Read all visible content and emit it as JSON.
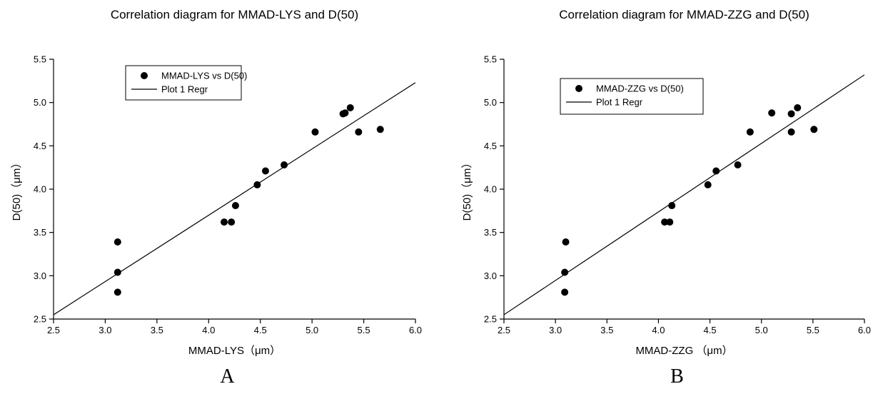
{
  "chart_data": [
    {
      "type": "scatter",
      "title": "Correlation diagram for MMAD-LYS and D(50)",
      "xlabel": "MMAD-LYS（μm）",
      "ylabel": "D(50)（μm）",
      "panel_label": "A",
      "xlim": [
        2.5,
        6.0
      ],
      "ylim": [
        2.5,
        5.5
      ],
      "xticks": [
        "2.5",
        "3.0",
        "3.5",
        "4.0",
        "4.5",
        "5.0",
        "5.5",
        "6.0"
      ],
      "yticks": [
        "2.5",
        "3.0",
        "3.5",
        "4.0",
        "4.5",
        "5.0",
        "5.5"
      ],
      "legend_position": "top-left",
      "series": [
        {
          "name": "MMAD-LYS vs D(50)",
          "marker": "circle",
          "x": [
            3.12,
            3.12,
            3.12,
            4.15,
            4.22,
            4.26,
            4.47,
            4.55,
            4.73,
            5.03,
            5.3,
            5.32,
            5.37,
            5.45,
            5.66
          ],
          "y": [
            3.39,
            3.04,
            2.81,
            3.62,
            3.62,
            3.81,
            4.05,
            4.21,
            4.28,
            4.66,
            4.87,
            4.88,
            4.94,
            4.66,
            4.69
          ]
        },
        {
          "name": "Plot 1 Regr",
          "marker": "line",
          "x": [
            2.5,
            6.0
          ],
          "y": [
            2.55,
            5.23
          ]
        }
      ]
    },
    {
      "type": "scatter",
      "title": "Correlation diagram for MMAD-ZZG and D(50)",
      "xlabel": "MMAD-ZZG （μm）",
      "ylabel": "D(50)（μm）",
      "panel_label": "B",
      "xlim": [
        2.5,
        6.0
      ],
      "ylim": [
        2.5,
        5.5
      ],
      "xticks": [
        "2.5",
        "3.0",
        "3.5",
        "4.0",
        "4.5",
        "5.0",
        "5.5",
        "6.0"
      ],
      "yticks": [
        "2.5",
        "3.0",
        "3.5",
        "4.0",
        "4.5",
        "5.0",
        "5.5"
      ],
      "legend_position": "top-left",
      "series": [
        {
          "name": "MMAD-ZZG vs D(50)",
          "marker": "circle",
          "x": [
            3.1,
            3.09,
            3.09,
            4.06,
            4.11,
            4.13,
            4.48,
            4.56,
            4.77,
            4.89,
            5.1,
            5.29,
            5.35,
            5.29,
            5.51
          ],
          "y": [
            3.39,
            3.04,
            2.81,
            3.62,
            3.62,
            3.81,
            4.05,
            4.21,
            4.28,
            4.66,
            4.88,
            4.87,
            4.94,
            4.66,
            4.69
          ]
        },
        {
          "name": "Plot 1 Regr",
          "marker": "line",
          "x": [
            2.5,
            6.0
          ],
          "y": [
            2.55,
            5.32
          ]
        }
      ]
    }
  ]
}
